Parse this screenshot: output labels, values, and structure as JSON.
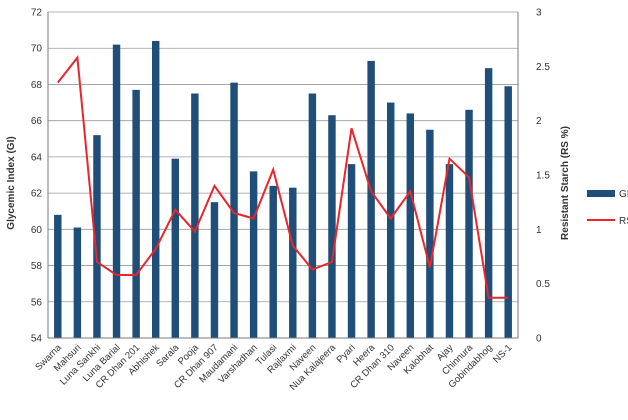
{
  "chart_data": {
    "type": "bar",
    "categories": [
      "Swarna",
      "Mahsuri",
      "Luna Sankhi",
      "Luna Barial",
      "CR Dhan 201",
      "Abhishek",
      "Sarala",
      "Pooja",
      "CR Dhan 907",
      "Maudamani",
      "Varshadhan",
      "Tulasi",
      "Rajlaxmi",
      "Naveen",
      "Nua Kalajeera",
      "Pyari",
      "Heera",
      "CR Dhan 310",
      "Naveen",
      "Kalobhat",
      "Ajay",
      "Chinnura",
      "Gobindabhog",
      "NS-1"
    ],
    "series": [
      {
        "name": "GI",
        "kind": "bar",
        "axis": "left",
        "color": "#1f4e79",
        "values": [
          60.8,
          60.1,
          65.2,
          70.2,
          67.7,
          70.4,
          63.9,
          67.5,
          61.5,
          68.1,
          63.2,
          62.4,
          62.3,
          67.5,
          66.3,
          63.6,
          69.3,
          67.0,
          66.4,
          65.5,
          63.6,
          66.6,
          68.9,
          67.9
        ]
      },
      {
        "name": "RS",
        "kind": "line",
        "axis": "right",
        "color": "#e8262b",
        "values": [
          2.35,
          2.58,
          0.7,
          0.58,
          0.58,
          0.82,
          1.18,
          0.98,
          1.4,
          1.15,
          1.1,
          1.55,
          0.85,
          0.63,
          0.7,
          1.93,
          1.35,
          1.1,
          1.35,
          0.65,
          1.65,
          1.48,
          0.37,
          0.37
        ]
      }
    ],
    "ylabel": "Glycemic Index (GI)",
    "y2label": "Resistant Starch (RS %)",
    "ylim": [
      54,
      72
    ],
    "y2lim": [
      0,
      3
    ],
    "yticks": [
      54,
      56,
      58,
      60,
      62,
      64,
      66,
      68,
      70,
      72
    ],
    "y2ticks": [
      "0",
      "0.5",
      "1",
      "1.5",
      "2",
      "2.5",
      "3"
    ],
    "grid": true,
    "legend_position": "right"
  }
}
